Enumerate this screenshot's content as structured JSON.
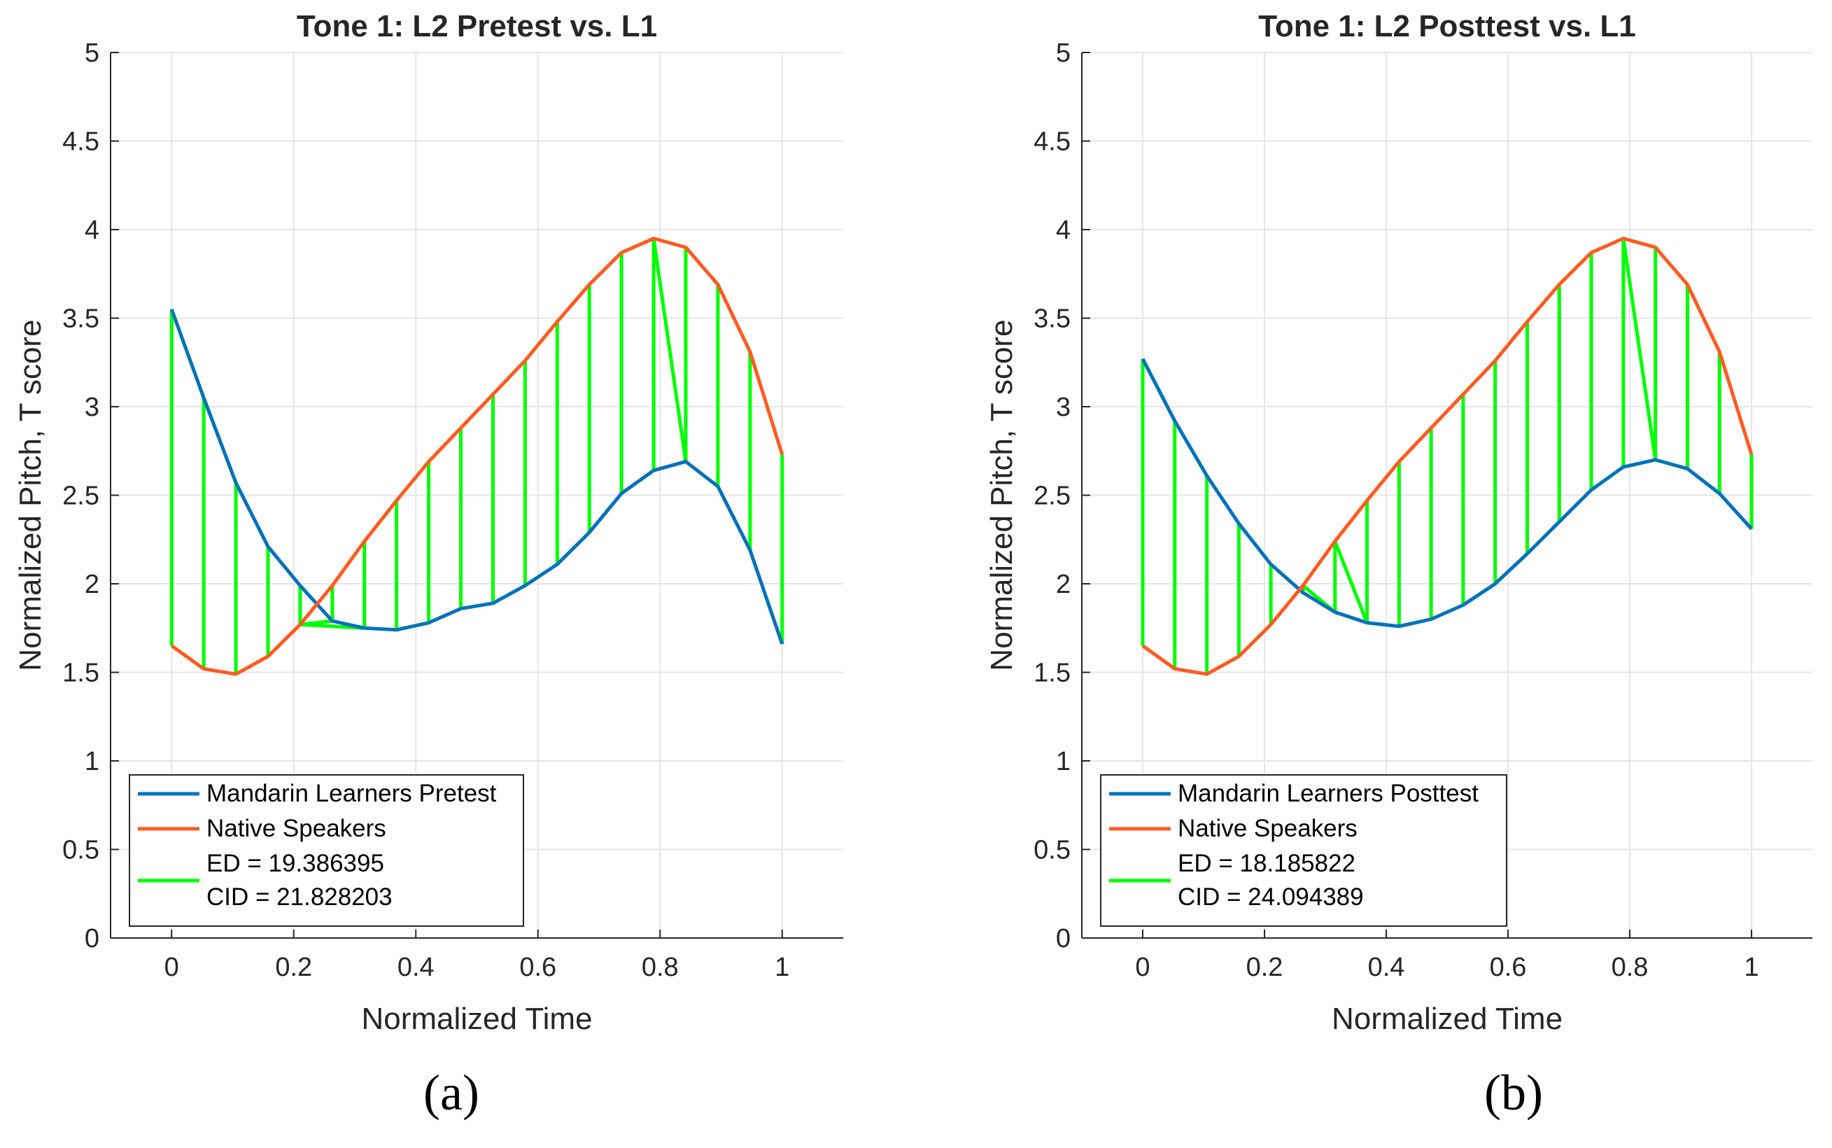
{
  "colors": {
    "learner": "#0072BD",
    "native": "#FF5A1F",
    "match": "#00FF00",
    "grid": "#E6E6E6",
    "axis": "#262626"
  },
  "panel_labels": [
    "(a)",
    "(b)"
  ],
  "chart_data": [
    {
      "type": "line",
      "title": "Tone 1: L2 Pretest vs. L1",
      "xlabel": "Normalized Time",
      "ylabel": "Normalized Pitch, T score",
      "xlim": [
        -0.1,
        1.1
      ],
      "ylim": [
        0,
        5
      ],
      "xticks": [
        0,
        0.2,
        0.4,
        0.6,
        0.8,
        1
      ],
      "xtick_labels": [
        "0",
        "0.2",
        "0.4",
        "0.6",
        "0.8",
        "1"
      ],
      "yticks": [
        0,
        0.5,
        1,
        1.5,
        2,
        2.5,
        3,
        3.5,
        4,
        4.5,
        5
      ],
      "ytick_labels": [
        "0",
        "0.5",
        "1",
        "1.5",
        "2",
        "2.5",
        "3",
        "3.5",
        "4",
        "4.5",
        "5"
      ],
      "grid": true,
      "legend_position": "bottom-left",
      "series": [
        {
          "name": "Mandarin Learners Pretest",
          "color": "#0072BD",
          "x": [
            0,
            0.0526,
            0.1053,
            0.1579,
            0.2105,
            0.2632,
            0.3158,
            0.3684,
            0.4211,
            0.4737,
            0.5263,
            0.5789,
            0.6316,
            0.6842,
            0.7368,
            0.7895,
            0.8421,
            0.8947,
            0.9474,
            1
          ],
          "values": [
            3.55,
            3.05,
            2.57,
            2.21,
            1.99,
            1.79,
            1.75,
            1.74,
            1.78,
            1.86,
            1.89,
            1.99,
            2.11,
            2.29,
            2.51,
            2.64,
            2.69,
            2.55,
            2.19,
            1.66
          ]
        },
        {
          "name": "Native Speakers",
          "color": "#FF5A1F",
          "x": [
            0,
            0.0526,
            0.1053,
            0.1579,
            0.2105,
            0.2632,
            0.3158,
            0.3684,
            0.4211,
            0.4737,
            0.5263,
            0.5789,
            0.6316,
            0.6842,
            0.7368,
            0.7895,
            0.8421,
            0.8947,
            0.9474,
            1
          ],
          "values": [
            1.65,
            1.52,
            1.49,
            1.59,
            1.77,
            1.99,
            2.24,
            2.47,
            2.69,
            2.88,
            3.07,
            3.26,
            3.48,
            3.69,
            3.87,
            3.95,
            3.9,
            3.69,
            3.31,
            2.73
          ]
        }
      ],
      "matches": [
        [
          0,
          0
        ],
        [
          1,
          1
        ],
        [
          2,
          2
        ],
        [
          3,
          3
        ],
        [
          4,
          4
        ],
        [
          5,
          4
        ],
        [
          6,
          4
        ],
        [
          5,
          5
        ],
        [
          6,
          6
        ],
        [
          7,
          7
        ],
        [
          8,
          8
        ],
        [
          9,
          9
        ],
        [
          10,
          10
        ],
        [
          11,
          11
        ],
        [
          12,
          12
        ],
        [
          13,
          13
        ],
        [
          14,
          14
        ],
        [
          15,
          15
        ],
        [
          16,
          15
        ],
        [
          16,
          16
        ],
        [
          17,
          17
        ],
        [
          18,
          18
        ],
        [
          19,
          19
        ]
      ],
      "legend": [
        "Mandarin Learners Pretest",
        "Native Speakers",
        "ED = 19.386395",
        "CID = 21.828203"
      ]
    },
    {
      "type": "line",
      "title": "Tone 1: L2 Posttest vs. L1",
      "xlabel": "Normalized Time",
      "ylabel": "Normalized Pitch, T score",
      "xlim": [
        -0.1,
        1.1
      ],
      "ylim": [
        0,
        5
      ],
      "xticks": [
        0,
        0.2,
        0.4,
        0.6,
        0.8,
        1
      ],
      "xtick_labels": [
        "0",
        "0.2",
        "0.4",
        "0.6",
        "0.8",
        "1"
      ],
      "yticks": [
        0,
        0.5,
        1,
        1.5,
        2,
        2.5,
        3,
        3.5,
        4,
        4.5,
        5
      ],
      "ytick_labels": [
        "0",
        "0.5",
        "1",
        "1.5",
        "2",
        "2.5",
        "3",
        "3.5",
        "4",
        "4.5",
        "5"
      ],
      "grid": true,
      "legend_position": "bottom-left",
      "series": [
        {
          "name": "Mandarin Learners Posttest",
          "color": "#0072BD",
          "x": [
            0,
            0.0526,
            0.1053,
            0.1579,
            0.2105,
            0.2632,
            0.3158,
            0.3684,
            0.4211,
            0.4737,
            0.5263,
            0.5789,
            0.6316,
            0.6842,
            0.7368,
            0.7895,
            0.8421,
            0.8947,
            0.9474,
            1
          ],
          "values": [
            3.27,
            2.92,
            2.61,
            2.34,
            2.11,
            1.95,
            1.84,
            1.78,
            1.76,
            1.8,
            1.88,
            2.0,
            2.17,
            2.35,
            2.53,
            2.66,
            2.7,
            2.65,
            2.51,
            2.31
          ]
        },
        {
          "name": "Native Speakers",
          "color": "#FF5A1F",
          "x": [
            0,
            0.0526,
            0.1053,
            0.1579,
            0.2105,
            0.2632,
            0.3158,
            0.3684,
            0.4211,
            0.4737,
            0.5263,
            0.5789,
            0.6316,
            0.6842,
            0.7368,
            0.7895,
            0.8421,
            0.8947,
            0.9474,
            1
          ],
          "values": [
            1.65,
            1.52,
            1.49,
            1.59,
            1.77,
            1.99,
            2.24,
            2.47,
            2.69,
            2.88,
            3.07,
            3.26,
            3.48,
            3.69,
            3.87,
            3.95,
            3.9,
            3.69,
            3.31,
            2.73
          ]
        }
      ],
      "matches": [
        [
          0,
          0
        ],
        [
          1,
          1
        ],
        [
          2,
          2
        ],
        [
          3,
          3
        ],
        [
          4,
          4
        ],
        [
          5,
          5
        ],
        [
          6,
          5
        ],
        [
          6,
          6
        ],
        [
          7,
          6
        ],
        [
          7,
          7
        ],
        [
          8,
          8
        ],
        [
          9,
          9
        ],
        [
          10,
          10
        ],
        [
          11,
          11
        ],
        [
          12,
          12
        ],
        [
          13,
          13
        ],
        [
          14,
          14
        ],
        [
          15,
          15
        ],
        [
          16,
          15
        ],
        [
          16,
          16
        ],
        [
          17,
          17
        ],
        [
          18,
          18
        ],
        [
          19,
          19
        ]
      ],
      "legend": [
        "Mandarin Learners Posttest",
        "Native Speakers",
        "ED = 18.185822",
        "CID = 24.094389"
      ]
    }
  ]
}
